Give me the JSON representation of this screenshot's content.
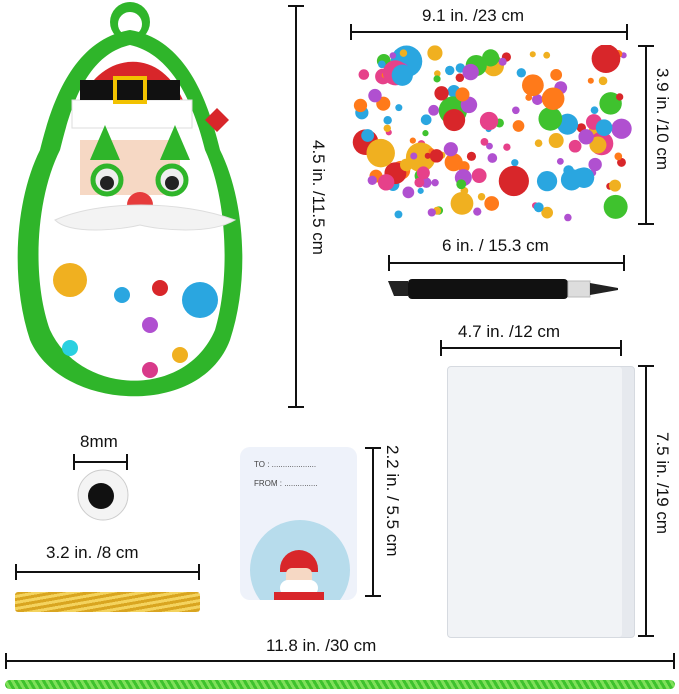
{
  "dimensions": {
    "ornament_height": "4.5 in. /11.5 cm",
    "sheet_width": "9.1 in. /23 cm",
    "sheet_height": "3.9 in. /10 cm",
    "pen_length": "6 in. / 15.3 cm",
    "bag_width": "4.7 in. /12 cm",
    "bag_height": "7.5 in. /19 cm",
    "eye_size": "8mm",
    "tag_height": "2.2 in. / 5.5 cm",
    "tie_length": "3.2 in. /8 cm",
    "cord_length": "11.8 in. /30 cm"
  },
  "gift_tag": {
    "to": "TO : ....................",
    "from": "FROM : ..............."
  },
  "colors": {
    "green": "#2fb52a",
    "red": "#d8262a",
    "tag_bg": "#eef2fa",
    "sky": "#b7dcec"
  }
}
